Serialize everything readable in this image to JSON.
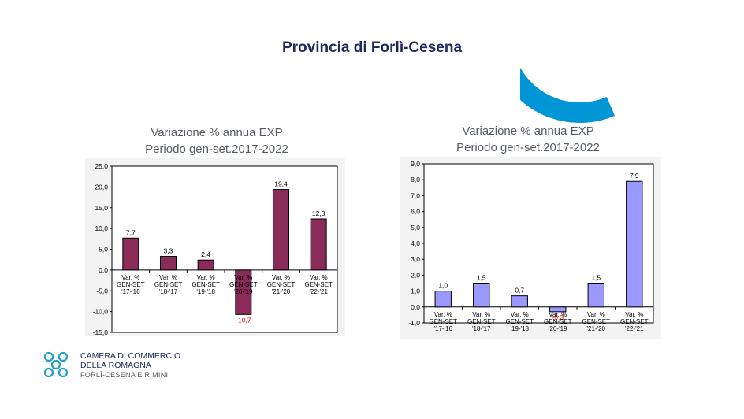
{
  "page": {
    "title": "Provincia di  Forlì-Cesena"
  },
  "logo": {
    "line1": "CAMERA DI COMMERCIO",
    "line2": "DELLA ROMAGNA",
    "line3": "FORLÌ-CESENA E RIMINI"
  },
  "colors": {
    "accent_arc": "#0096d6",
    "title_text": "#1f2a60",
    "left_bar": "#8b2b5a",
    "right_bar": "#9999ff",
    "negative_label": "#ff0000"
  },
  "chart_data": [
    {
      "type": "bar",
      "title": "Variazione % annua EXP",
      "subtitle": "Periodo gen-set.2017-2022",
      "categories": [
        [
          "Var. %",
          "GEN-SET",
          "'17-'16"
        ],
        [
          "Var. %",
          "GEN-SET",
          "'18-'17"
        ],
        [
          "Var. %",
          "GEN-SET",
          "'19-'18"
        ],
        [
          "Var. %",
          "GEN-SET",
          "'20-'19"
        ],
        [
          "Var. %",
          "GEN-SET",
          "'21-'20"
        ],
        [
          "Var. %",
          "GEN-SET",
          "'22-'21"
        ]
      ],
      "values": [
        7.7,
        3.3,
        2.4,
        -10.7,
        19.4,
        12.3
      ],
      "value_labels": [
        "7,7",
        "3,3",
        "2,4",
        "-10,7",
        "19,4",
        "12,3"
      ],
      "yticks": [
        "-15,0",
        "-10,0",
        "-5,0",
        "0,0",
        "5,0",
        "10,0",
        "15,0",
        "20,0",
        "25,0"
      ],
      "ylim": [
        -15,
        25
      ],
      "ystep": 5,
      "grid": false,
      "bar_color": "#8b2b5a"
    },
    {
      "type": "bar",
      "title": "Variazione % annua EXP",
      "subtitle": "Periodo gen-set.2017-2022",
      "categories": [
        [
          "Var. %",
          "GEN-SET",
          "'17-'16"
        ],
        [
          "Var. %",
          "GEN-SET",
          "'18-'17"
        ],
        [
          "Var. %",
          "GEN-SET",
          "'19-'18"
        ],
        [
          "Var. %",
          "GEN-SET",
          "'20-'19"
        ],
        [
          "Var. %",
          "GEN-SET",
          "'21-'20"
        ],
        [
          "Var. %",
          "GEN-SET",
          "'22-'21"
        ]
      ],
      "values": [
        1.0,
        1.5,
        0.7,
        -0.3,
        1.5,
        7.9
      ],
      "value_labels": [
        "1,0",
        "1,5",
        "0,7",
        "-0,3",
        "1,5",
        "7,9"
      ],
      "yticks": [
        "-1,0",
        "0,0",
        "1,0",
        "2,0",
        "3,0",
        "4,0",
        "5,0",
        "6,0",
        "7,0",
        "8,0",
        "9,0"
      ],
      "ylim": [
        -1,
        9
      ],
      "ystep": 1,
      "grid": false,
      "bar_color": "#9999ff"
    }
  ]
}
